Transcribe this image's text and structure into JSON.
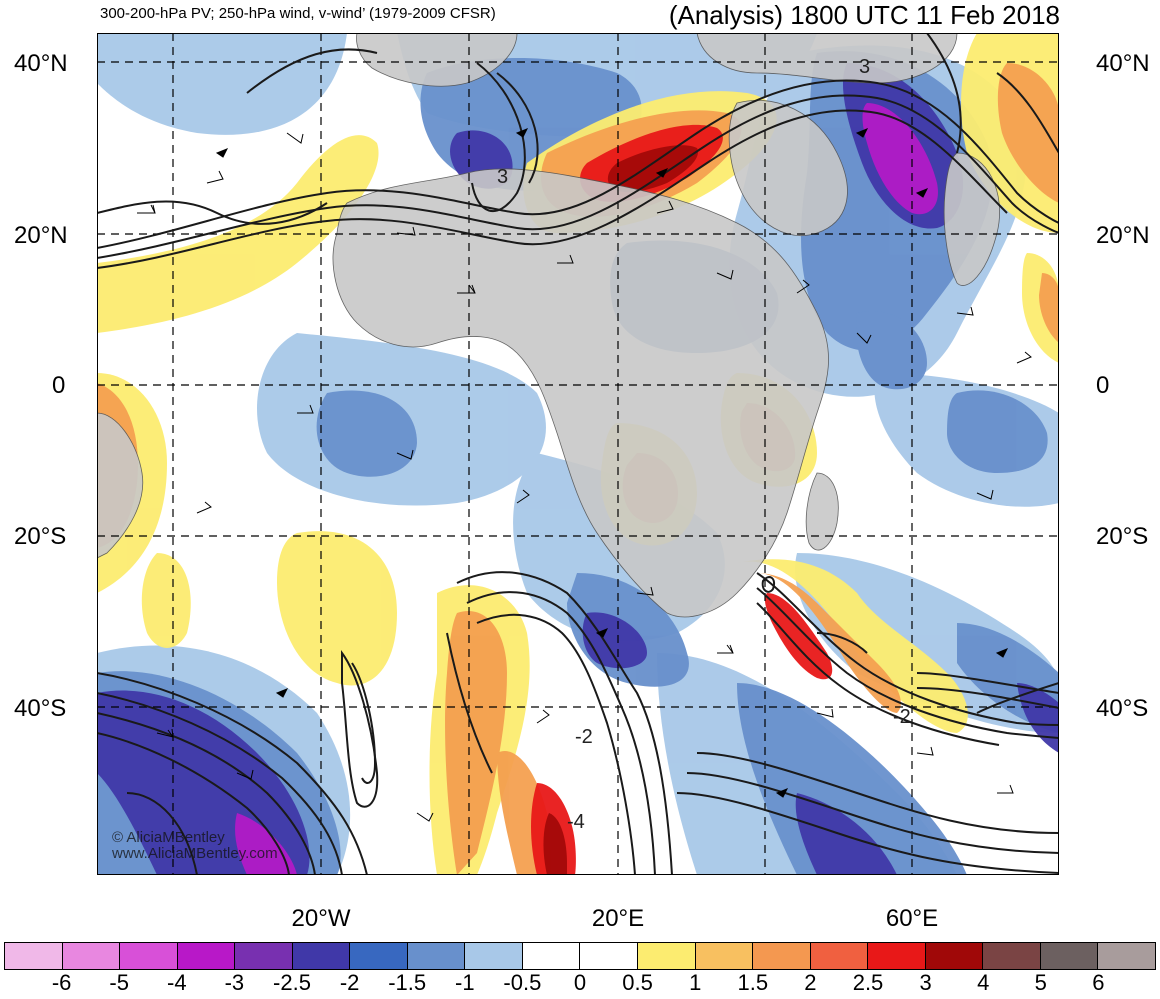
{
  "header": {
    "description": "300-200-hPa PV; 250-hPa wind, v-wind’ (1979-2009 CFSR)",
    "title": "(Analysis) 1800 UTC 11 Feb 2018"
  },
  "axes": {
    "lat_ticks": [
      "40°N",
      "20°N",
      "0",
      "20°S",
      "40°S"
    ],
    "lon_ticks": [
      "20°W",
      "20°E",
      "60°E"
    ]
  },
  "contour_labels": [
    "3",
    "3",
    "-2",
    "-4",
    "-2"
  ],
  "colorbar": {
    "labels": [
      "-6",
      "-5",
      "-4",
      "-3",
      "-2.5",
      "-2",
      "-1.5",
      "-1",
      "-0.5",
      "0",
      "0.5",
      "1",
      "1.5",
      "2",
      "2.5",
      "3",
      "4",
      "5",
      "6"
    ],
    "colors": [
      "#f0b8e8",
      "#e887e0",
      "#d850d8",
      "#b818c8",
      "#7830b0",
      "#4038a8",
      "#3868c0",
      "#6890cc",
      "#a8c8e8",
      "#ffffff",
      "#ffffff",
      "#fcec70",
      "#f8c060",
      "#f49850",
      "#f06040",
      "#e81818",
      "#a00808",
      "#7a4444",
      "#6c6060",
      "#a89c9c"
    ]
  },
  "watermark": {
    "line1": "© AliciaMBentley",
    "line2": "www.AliciaMBentley.com"
  },
  "colors": {
    "land": "#c8c8c8",
    "ocean": "#ffffff",
    "contour": "#1a1a1a",
    "grid": "#000000"
  }
}
